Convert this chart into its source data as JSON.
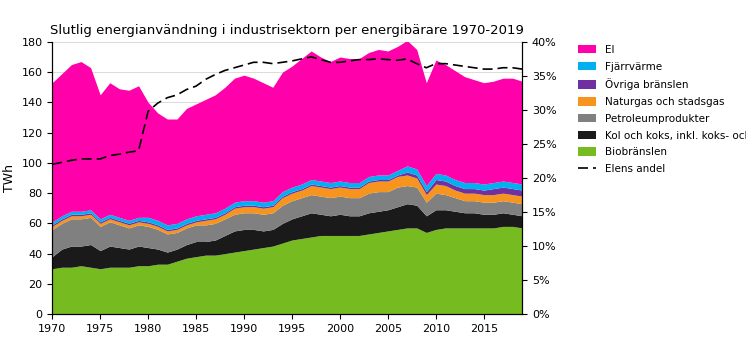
{
  "title": "Slutlig energianvändning i industrisektorn per energibärare 1970-2019",
  "years": [
    1970,
    1971,
    1972,
    1973,
    1974,
    1975,
    1976,
    1977,
    1978,
    1979,
    1980,
    1981,
    1982,
    1983,
    1984,
    1985,
    1986,
    1987,
    1988,
    1989,
    1990,
    1991,
    1992,
    1993,
    1994,
    1995,
    1996,
    1997,
    1998,
    1999,
    2000,
    2001,
    2002,
    2003,
    2004,
    2005,
    2006,
    2007,
    2008,
    2009,
    2010,
    2011,
    2012,
    2013,
    2014,
    2015,
    2016,
    2017,
    2018,
    2019
  ],
  "biobranslen": [
    30,
    31,
    31,
    32,
    31,
    30,
    31,
    31,
    31,
    32,
    32,
    33,
    33,
    35,
    37,
    38,
    39,
    39,
    40,
    41,
    42,
    43,
    44,
    45,
    47,
    49,
    50,
    51,
    52,
    52,
    52,
    52,
    52,
    53,
    54,
    55,
    56,
    57,
    57,
    54,
    56,
    57,
    57,
    57,
    57,
    57,
    57,
    58,
    58,
    57
  ],
  "kol_koks": [
    8,
    12,
    14,
    13,
    15,
    12,
    14,
    13,
    12,
    13,
    12,
    10,
    8,
    8,
    9,
    10,
    9,
    10,
    12,
    14,
    14,
    13,
    11,
    11,
    13,
    14,
    15,
    16,
    14,
    13,
    14,
    13,
    13,
    14,
    14,
    14,
    15,
    16,
    15,
    11,
    13,
    12,
    11,
    10,
    10,
    9,
    9,
    9,
    8,
    8
  ],
  "petroleum": [
    18,
    17,
    18,
    18,
    18,
    16,
    16,
    15,
    14,
    14,
    14,
    13,
    12,
    11,
    11,
    11,
    11,
    11,
    11,
    11,
    11,
    11,
    11,
    11,
    12,
    12,
    12,
    12,
    12,
    12,
    12,
    12,
    12,
    13,
    13,
    12,
    13,
    12,
    12,
    9,
    11,
    10,
    9,
    8,
    8,
    8,
    8,
    8,
    8,
    8
  ],
  "naturgas": [
    2,
    2,
    2,
    2,
    2,
    2,
    2,
    2,
    2,
    2,
    2,
    2,
    2,
    2,
    2,
    2,
    3,
    3,
    3,
    4,
    4,
    4,
    4,
    4,
    5,
    5,
    5,
    6,
    6,
    6,
    6,
    6,
    6,
    7,
    7,
    7,
    7,
    7,
    6,
    5,
    6,
    6,
    5,
    5,
    5,
    5,
    5,
    5,
    5,
    5
  ],
  "ovriga": [
    1,
    1,
    1,
    1,
    1,
    1,
    1,
    1,
    1,
    1,
    1,
    1,
    1,
    1,
    1,
    1,
    1,
    1,
    1,
    1,
    1,
    1,
    1,
    1,
    1,
    1,
    1,
    1,
    1,
    1,
    1,
    1,
    1,
    1,
    1,
    1,
    1,
    2,
    2,
    2,
    3,
    3,
    3,
    3,
    3,
    3,
    4,
    4,
    4,
    4
  ],
  "fjarrvarme": [
    2,
    2,
    2,
    2,
    2,
    2,
    2,
    2,
    2,
    2,
    3,
    3,
    3,
    3,
    3,
    3,
    3,
    3,
    3,
    3,
    3,
    3,
    3,
    3,
    3,
    3,
    3,
    3,
    3,
    3,
    3,
    3,
    3,
    3,
    3,
    3,
    3,
    4,
    4,
    4,
    4,
    4,
    4,
    4,
    4,
    4,
    4,
    4,
    4,
    4
  ],
  "el": [
    92,
    94,
    97,
    99,
    94,
    82,
    87,
    85,
    86,
    87,
    76,
    71,
    70,
    69,
    73,
    74,
    76,
    78,
    80,
    82,
    83,
    81,
    79,
    75,
    79,
    80,
    83,
    85,
    82,
    80,
    82,
    82,
    82,
    82,
    83,
    82,
    82,
    83,
    79,
    68,
    75,
    73,
    72,
    70,
    68,
    67,
    67,
    68,
    69,
    68
  ],
  "elens_andel": [
    0.22,
    0.223,
    0.226,
    0.228,
    0.228,
    0.228,
    0.233,
    0.235,
    0.238,
    0.24,
    0.298,
    0.31,
    0.318,
    0.322,
    0.33,
    0.335,
    0.345,
    0.352,
    0.358,
    0.362,
    0.366,
    0.37,
    0.37,
    0.368,
    0.37,
    0.372,
    0.375,
    0.378,
    0.374,
    0.37,
    0.37,
    0.372,
    0.374,
    0.374,
    0.375,
    0.374,
    0.373,
    0.375,
    0.368,
    0.362,
    0.368,
    0.368,
    0.366,
    0.364,
    0.362,
    0.36,
    0.36,
    0.362,
    0.362,
    0.36
  ],
  "colors": {
    "biobranslen": "#76BC21",
    "kol_koks": "#1A1A1A",
    "petroleum": "#808080",
    "naturgas": "#F7941D",
    "ovriga": "#7030A0",
    "fjarrvarme": "#00B0F0",
    "el": "#FF00AA"
  },
  "ylabel_left": "TWh",
  "ylim_left": [
    0,
    180
  ],
  "ylim_right": [
    0,
    0.4
  ],
  "yticks_left": [
    0,
    20,
    40,
    60,
    80,
    100,
    120,
    140,
    160,
    180
  ],
  "yticks_right": [
    0.0,
    0.05,
    0.1,
    0.15,
    0.2,
    0.25,
    0.3,
    0.35,
    0.4
  ],
  "ytick_labels_right": [
    "0%",
    "5%",
    "10%",
    "15%",
    "20%",
    "25%",
    "30%",
    "35%",
    "40%"
  ],
  "xticks": [
    1970,
    1975,
    1980,
    1985,
    1990,
    1995,
    2000,
    2005,
    2010,
    2015
  ]
}
